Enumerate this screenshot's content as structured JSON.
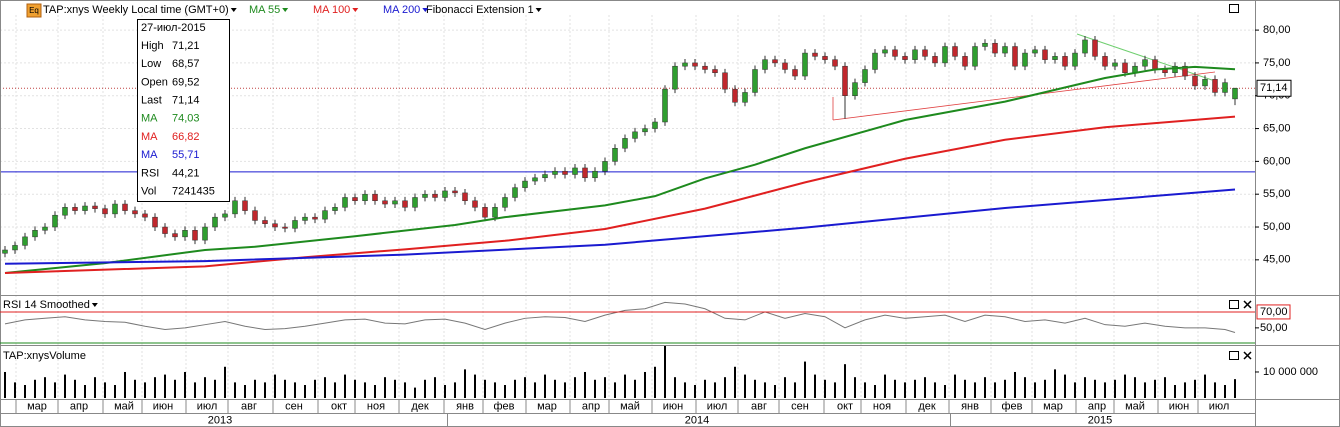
{
  "chart_data": {
    "type": "candlestick",
    "icon": "Eq",
    "symbol": "TAP:xnys Weekly Local time (GMT+0)",
    "fib": "Fibonacci Extension 1",
    "tooltip": {
      "date": "27-июл-2015",
      "rows": [
        {
          "label": "High",
          "value": "71,21"
        },
        {
          "label": "Low",
          "value": "68,57"
        },
        {
          "label": "Open",
          "value": "69,52"
        },
        {
          "label": "Last",
          "value": "71,14"
        },
        {
          "label": "MA",
          "value": "74,03",
          "color": "#1e8a1e"
        },
        {
          "label": "MA",
          "value": "66,82",
          "color": "#e02020"
        },
        {
          "label": "MA",
          "value": "55,71",
          "color": "#1a1ad0"
        },
        {
          "label": "RSI",
          "value": "44,21"
        },
        {
          "label": "Vol",
          "value": "7241435"
        }
      ]
    },
    "ylim": [
      40.1,
      82.3
    ],
    "yticks": [
      {
        "value": 45,
        "label": "45,00"
      },
      {
        "value": 50,
        "label": "50,00"
      },
      {
        "value": 55,
        "label": "55,00"
      },
      {
        "value": 60,
        "label": "60,00"
      },
      {
        "value": 65,
        "label": "65,00"
      },
      {
        "value": 70,
        "label": "70,00"
      },
      {
        "value": 75,
        "label": "75,00"
      },
      {
        "value": 80,
        "label": "80,00"
      }
    ],
    "last_price": {
      "value": 71.14,
      "label": "71,14"
    },
    "level_line": 58.4,
    "candles": [
      [
        46.0,
        47.1,
        45.4,
        46.5
      ],
      [
        46.5,
        47.8,
        45.9,
        47.2
      ],
      [
        47.2,
        49.1,
        46.6,
        48.5
      ],
      [
        48.5,
        50.1,
        47.9,
        49.5
      ],
      [
        49.5,
        50.6,
        48.9,
        50.0
      ],
      [
        50.0,
        52.4,
        49.4,
        51.8
      ],
      [
        51.8,
        53.6,
        51.2,
        53.0
      ],
      [
        53.0,
        53.6,
        51.9,
        52.5
      ],
      [
        52.5,
        53.8,
        51.9,
        53.2
      ],
      [
        53.2,
        53.8,
        52.2,
        52.8
      ],
      [
        52.8,
        53.4,
        51.4,
        52.0
      ],
      [
        52.0,
        54.1,
        51.4,
        53.5
      ],
      [
        53.5,
        54.1,
        51.9,
        52.5
      ],
      [
        52.5,
        53.1,
        51.4,
        52.0
      ],
      [
        52.0,
        52.6,
        50.9,
        51.5
      ],
      [
        51.5,
        52.1,
        49.4,
        50.0
      ],
      [
        50.0,
        50.6,
        48.4,
        49.0
      ],
      [
        49.0,
        49.6,
        47.9,
        48.5
      ],
      [
        48.5,
        50.1,
        47.9,
        49.5
      ],
      [
        49.5,
        50.1,
        47.4,
        48.0
      ],
      [
        48.0,
        50.6,
        47.4,
        50.0
      ],
      [
        50.0,
        52.1,
        49.4,
        51.5
      ],
      [
        51.5,
        52.6,
        50.9,
        52.0
      ],
      [
        52.0,
        54.6,
        51.4,
        54.0
      ],
      [
        54.0,
        54.6,
        51.9,
        52.5
      ],
      [
        52.5,
        53.1,
        50.4,
        51.0
      ],
      [
        51.0,
        51.6,
        49.9,
        50.5
      ],
      [
        50.5,
        51.1,
        49.4,
        50.0
      ],
      [
        50.0,
        50.6,
        49.2,
        49.8
      ],
      [
        49.8,
        51.6,
        49.2,
        51.0
      ],
      [
        51.0,
        52.1,
        50.4,
        51.5
      ],
      [
        51.5,
        52.1,
        50.6,
        51.2
      ],
      [
        51.2,
        53.1,
        50.6,
        52.5
      ],
      [
        52.5,
        53.6,
        51.9,
        53.0
      ],
      [
        53.0,
        55.1,
        52.4,
        54.5
      ],
      [
        54.5,
        55.1,
        53.4,
        54.0
      ],
      [
        54.0,
        55.6,
        53.4,
        55.0
      ],
      [
        55.0,
        55.6,
        53.4,
        54.0
      ],
      [
        54.0,
        54.6,
        52.9,
        53.5
      ],
      [
        53.5,
        54.6,
        52.9,
        54.0
      ],
      [
        54.0,
        54.6,
        52.4,
        53.0
      ],
      [
        53.0,
        55.1,
        52.4,
        54.5
      ],
      [
        54.5,
        55.6,
        53.9,
        55.0
      ],
      [
        55.0,
        55.6,
        53.9,
        54.5
      ],
      [
        54.5,
        56.1,
        53.9,
        55.5
      ],
      [
        55.5,
        56.1,
        54.6,
        55.2
      ],
      [
        55.2,
        55.8,
        53.4,
        54.0
      ],
      [
        54.0,
        54.6,
        52.4,
        53.0
      ],
      [
        53.0,
        53.6,
        50.9,
        51.5
      ],
      [
        51.5,
        53.6,
        50.9,
        53.0
      ],
      [
        53.0,
        55.1,
        52.4,
        54.5
      ],
      [
        54.5,
        56.6,
        53.9,
        56.0
      ],
      [
        56.0,
        57.6,
        55.4,
        57.0
      ],
      [
        57.0,
        58.1,
        56.4,
        57.5
      ],
      [
        57.5,
        58.6,
        56.9,
        58.0
      ],
      [
        58.0,
        59.1,
        57.4,
        58.5
      ],
      [
        58.5,
        59.1,
        57.4,
        58.0
      ],
      [
        58.0,
        59.6,
        57.4,
        59.0
      ],
      [
        59.0,
        59.6,
        56.9,
        57.5
      ],
      [
        57.5,
        59.1,
        56.9,
        58.5
      ],
      [
        58.5,
        60.6,
        57.9,
        60.0
      ],
      [
        60.0,
        62.6,
        59.4,
        62.0
      ],
      [
        62.0,
        64.1,
        61.4,
        63.5
      ],
      [
        63.5,
        65.1,
        62.9,
        64.5
      ],
      [
        64.5,
        65.6,
        63.9,
        65.0
      ],
      [
        65.0,
        66.6,
        64.4,
        66.0
      ],
      [
        66.0,
        71.6,
        65.4,
        71.0
      ],
      [
        71.0,
        75.1,
        70.4,
        74.5
      ],
      [
        74.5,
        75.6,
        73.9,
        75.0
      ],
      [
        75.0,
        75.6,
        73.9,
        74.5
      ],
      [
        74.5,
        75.1,
        73.4,
        74.0
      ],
      [
        74.0,
        74.6,
        72.9,
        73.5
      ],
      [
        73.5,
        74.1,
        70.4,
        71.0
      ],
      [
        71.0,
        71.6,
        68.4,
        69.0
      ],
      [
        69.0,
        71.1,
        68.4,
        70.5
      ],
      [
        70.5,
        74.6,
        69.9,
        74.0
      ],
      [
        74.0,
        76.1,
        73.4,
        75.5
      ],
      [
        75.5,
        76.1,
        74.4,
        75.0
      ],
      [
        75.0,
        75.6,
        73.4,
        74.0
      ],
      [
        74.0,
        74.6,
        72.4,
        73.0
      ],
      [
        73.0,
        77.1,
        72.4,
        76.5
      ],
      [
        76.5,
        77.1,
        75.4,
        76.0
      ],
      [
        76.0,
        76.6,
        74.9,
        75.5
      ],
      [
        75.5,
        76.1,
        73.9,
        74.5
      ],
      [
        74.5,
        75.1,
        66.5,
        70.0
      ],
      [
        70.0,
        72.6,
        69.4,
        72.0
      ],
      [
        72.0,
        74.6,
        71.4,
        74.0
      ],
      [
        74.0,
        77.1,
        73.4,
        76.5
      ],
      [
        76.5,
        77.6,
        75.9,
        77.0
      ],
      [
        77.0,
        77.6,
        75.4,
        76.0
      ],
      [
        76.0,
        76.6,
        74.9,
        75.5
      ],
      [
        75.5,
        77.6,
        74.9,
        77.0
      ],
      [
        77.0,
        77.6,
        75.4,
        76.0
      ],
      [
        76.0,
        76.6,
        74.4,
        75.0
      ],
      [
        75.0,
        78.1,
        74.4,
        77.5
      ],
      [
        77.5,
        78.1,
        75.4,
        76.0
      ],
      [
        76.0,
        76.6,
        73.9,
        74.5
      ],
      [
        74.5,
        78.1,
        73.9,
        77.5
      ],
      [
        77.5,
        78.6,
        76.9,
        78.0
      ],
      [
        78.0,
        78.6,
        75.9,
        76.5
      ],
      [
        76.5,
        78.1,
        75.9,
        77.5
      ],
      [
        77.5,
        78.1,
        73.9,
        74.5
      ],
      [
        74.5,
        77.1,
        73.9,
        76.5
      ],
      [
        76.5,
        77.6,
        75.9,
        77.0
      ],
      [
        77.0,
        77.6,
        74.9,
        75.5
      ],
      [
        75.5,
        76.6,
        74.9,
        76.0
      ],
      [
        76.0,
        76.6,
        73.9,
        74.5
      ],
      [
        74.5,
        77.1,
        73.9,
        76.5
      ],
      [
        76.5,
        79.1,
        75.9,
        78.5
      ],
      [
        78.5,
        79.1,
        75.4,
        76.0
      ],
      [
        76.0,
        76.6,
        73.9,
        74.5
      ],
      [
        74.5,
        75.6,
        73.9,
        75.0
      ],
      [
        75.0,
        75.6,
        72.9,
        73.5
      ],
      [
        73.5,
        75.1,
        72.9,
        74.5
      ],
      [
        74.5,
        76.1,
        73.9,
        75.5
      ],
      [
        75.5,
        76.1,
        73.4,
        74.0
      ],
      [
        74.0,
        74.6,
        72.9,
        73.5
      ],
      [
        73.5,
        75.1,
        72.9,
        74.5
      ],
      [
        74.5,
        75.1,
        72.4,
        73.0
      ],
      [
        73.0,
        73.6,
        70.9,
        71.5
      ],
      [
        71.5,
        73.1,
        70.9,
        72.5
      ],
      [
        72.5,
        73.1,
        69.9,
        70.5
      ],
      [
        70.5,
        72.6,
        69.9,
        72.0
      ],
      [
        69.52,
        71.21,
        68.57,
        71.14
      ]
    ],
    "series": [
      {
        "name": "MA 55",
        "color": "#1e8a1e",
        "x": [
          0,
          10,
          20,
          25,
          35,
          45,
          50,
          60,
          65,
          70,
          75,
          80,
          90,
          100,
          110,
          115,
          119,
          123
        ],
        "values": [
          43.0,
          44.5,
          46.5,
          47.0,
          48.6,
          50.3,
          51.5,
          53.3,
          54.7,
          57.4,
          59.5,
          62.0,
          66.3,
          69.1,
          72.7,
          74.0,
          74.4,
          74.03
        ]
      },
      {
        "name": "MA 100",
        "color": "#e02020",
        "x": [
          0,
          20,
          30,
          40,
          50,
          60,
          70,
          80,
          90,
          100,
          110,
          123
        ],
        "values": [
          43.0,
          44.0,
          45.4,
          46.6,
          47.9,
          49.7,
          52.8,
          56.8,
          60.4,
          63.3,
          65.2,
          66.82
        ]
      },
      {
        "name": "MA 200",
        "color": "#1a1ad0",
        "x": [
          0,
          20,
          40,
          60,
          80,
          100,
          123
        ],
        "values": [
          44.4,
          44.8,
          45.8,
          47.3,
          49.9,
          52.9,
          55.71
        ]
      }
    ],
    "rsi": {
      "title": "RSI 14 Smoothed",
      "ylim": [
        31,
        87.5
      ],
      "yticks": [
        {
          "value": 70,
          "label": "70,00"
        },
        {
          "value": 50,
          "label": "50,00"
        }
      ],
      "x": [
        0,
        2,
        4,
        6,
        8,
        10,
        12,
        14,
        16,
        18,
        20,
        22,
        24,
        26,
        28,
        30,
        32,
        34,
        36,
        38,
        40,
        42,
        44,
        46,
        48,
        50,
        52,
        54,
        56,
        58,
        60,
        62,
        64,
        66,
        68,
        70,
        72,
        74,
        76,
        78,
        80,
        82,
        84,
        86,
        88,
        90,
        92,
        94,
        96,
        98,
        100,
        102,
        104,
        106,
        108,
        110,
        112,
        114,
        116,
        118,
        120,
        122,
        123
      ],
      "values": [
        55,
        60,
        62,
        64,
        60,
        58,
        57,
        52,
        48,
        50,
        54,
        58,
        52,
        48,
        49,
        52,
        56,
        60,
        61,
        56,
        55,
        60,
        61,
        56,
        48,
        56,
        62,
        64,
        63,
        58,
        66,
        72,
        74,
        82,
        80,
        74,
        62,
        60,
        70,
        62,
        68,
        64,
        50,
        60,
        66,
        62,
        64,
        66,
        58,
        66,
        64,
        58,
        60,
        56,
        62,
        54,
        52,
        56,
        52,
        50,
        50,
        48,
        44.21
      ]
    },
    "volume": {
      "title": "TAP:xnysVolume",
      "ylim": [
        0,
        19600000
      ],
      "yticks": [
        {
          "value": 10000000,
          "label": "10 000 000"
        }
      ],
      "values": [
        10000000,
        6000000,
        5000000,
        7000000,
        8000000,
        6000000,
        9000000,
        7000000,
        5000000,
        8000000,
        6000000,
        5000000,
        10000000,
        7000000,
        6000000,
        8000000,
        9000000,
        7000000,
        10000000,
        6000000,
        8000000,
        7000000,
        12000000,
        6000000,
        5000000,
        7000000,
        6000000,
        9000000,
        7000000,
        6000000,
        5000000,
        7000000,
        8000000,
        6000000,
        9000000,
        7000000,
        6000000,
        5000000,
        8000000,
        7000000,
        6000000,
        4000000,
        7000000,
        8000000,
        5000000,
        6000000,
        11000000,
        9000000,
        7000000,
        6000000,
        5000000,
        7000000,
        8000000,
        6000000,
        9000000,
        7000000,
        6000000,
        8000000,
        10000000,
        7000000,
        8000000,
        6000000,
        9000000,
        7000000,
        10000000,
        12000000,
        20000000,
        8000000,
        6000000,
        5000000,
        7000000,
        6000000,
        8000000,
        12000000,
        9000000,
        7000000,
        6000000,
        5000000,
        8000000,
        6000000,
        14000000,
        9000000,
        7000000,
        6000000,
        13000000,
        8000000,
        6000000,
        5000000,
        9000000,
        7000000,
        6000000,
        7000000,
        8000000,
        6000000,
        5000000,
        9000000,
        7000000,
        6000000,
        8000000,
        6000000,
        7000000,
        10000000,
        8000000,
        6000000,
        7000000,
        11000000,
        9000000,
        6000000,
        8000000,
        7000000,
        6000000,
        7000000,
        9000000,
        8000000,
        6000000,
        7000000,
        8000000,
        5000000,
        6000000,
        7000000,
        9000000,
        6000000,
        5000000,
        7241435
      ]
    },
    "xticks": [
      {
        "value": 3.2,
        "label": "мар"
      },
      {
        "value": 7.4,
        "label": "апр"
      },
      {
        "value": 11.9,
        "label": "май"
      },
      {
        "value": 15.8,
        "label": "июн"
      },
      {
        "value": 20.2,
        "label": "июл"
      },
      {
        "value": 24.4,
        "label": "авг"
      },
      {
        "value": 28.9,
        "label": "сен"
      },
      {
        "value": 33.4,
        "label": "окт"
      },
      {
        "value": 37.1,
        "label": "ноя"
      },
      {
        "value": 41.5,
        "label": "дек"
      },
      {
        "value": 46,
        "label": "янв"
      },
      {
        "value": 49.9,
        "label": "фев"
      },
      {
        "value": 54.2,
        "label": "мар"
      },
      {
        "value": 58.6,
        "label": "апр"
      },
      {
        "value": 62.5,
        "label": "май"
      },
      {
        "value": 66.8,
        "label": "июн"
      },
      {
        "value": 71.2,
        "label": "июл"
      },
      {
        "value": 75.4,
        "label": "авг"
      },
      {
        "value": 79.5,
        "label": "сен"
      },
      {
        "value": 84,
        "label": "окт"
      },
      {
        "value": 87.7,
        "label": "ноя"
      },
      {
        "value": 92.2,
        "label": "дек"
      },
      {
        "value": 96.5,
        "label": "янв"
      },
      {
        "value": 100.7,
        "label": "фев"
      },
      {
        "value": 104.8,
        "label": "мар"
      },
      {
        "value": 109.2,
        "label": "апр"
      },
      {
        "value": 113,
        "label": "май"
      },
      {
        "value": 117.4,
        "label": "июн"
      },
      {
        "value": 121.4,
        "label": "июл"
      }
    ],
    "year_ticks": [
      {
        "value": 21.5,
        "label": "2013"
      },
      {
        "value": 69.2,
        "label": "2014"
      },
      {
        "value": 109.5,
        "label": "2015"
      }
    ]
  }
}
